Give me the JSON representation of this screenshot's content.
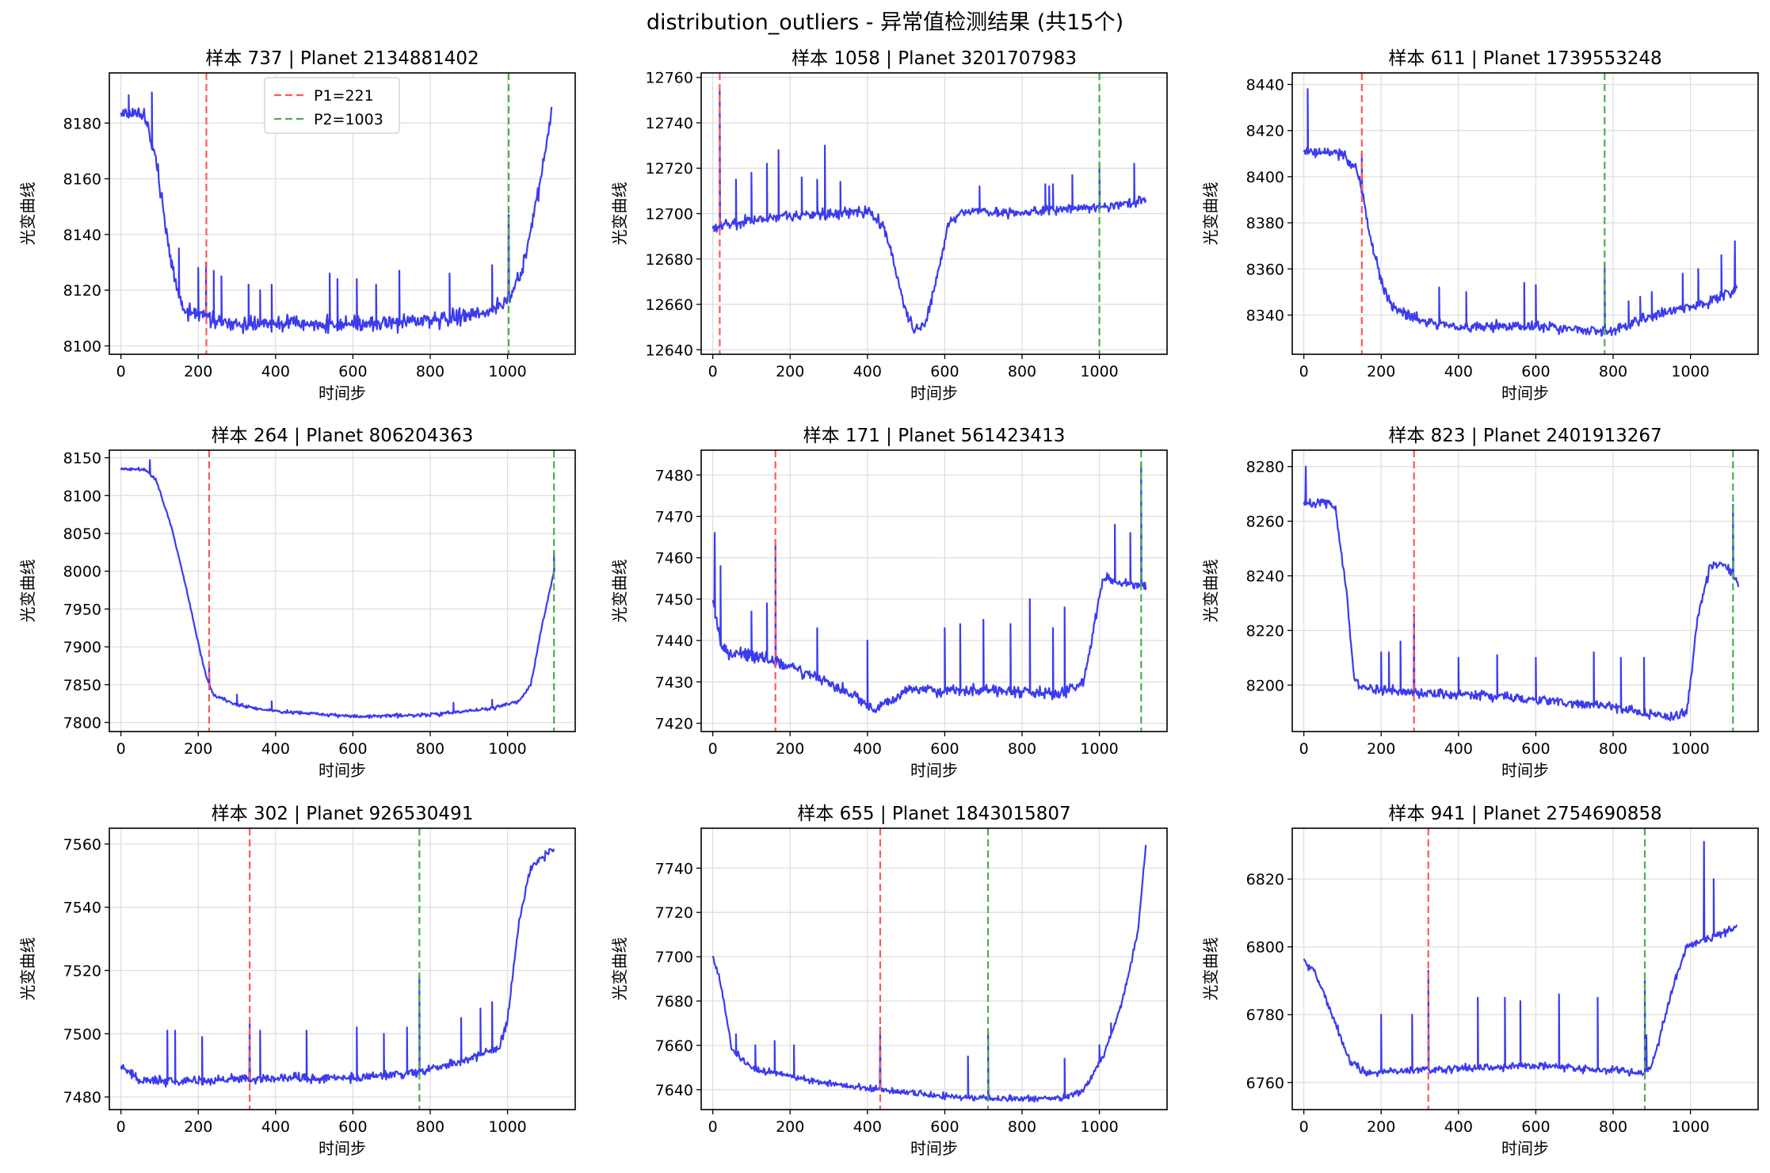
{
  "figure": {
    "title": "distribution_outliers - 异常值检测结果 (共15个)"
  },
  "colors": {
    "series": "#3b3bf0",
    "p1": "#ff5a5a",
    "p2": "#4caf50",
    "grid": "#dddddd"
  },
  "chart_data": [
    {
      "type": "line",
      "title": "样本 737 | Planet 2134881402",
      "xlabel": "时间步",
      "ylabel": "光变曲线",
      "xlim": [
        -30,
        1175
      ],
      "ylim": [
        8097,
        8198
      ],
      "xticks": [
        0,
        200,
        400,
        600,
        800,
        1000
      ],
      "yticks": [
        8100,
        8120,
        8140,
        8160,
        8180
      ],
      "p1": 221,
      "p2": 1003,
      "legend": {
        "loc": "upper center",
        "entries": [
          "P1=221",
          "P2=1003"
        ]
      },
      "curve": [
        [
          0,
          8184
        ],
        [
          60,
          8183
        ],
        [
          90,
          8168
        ],
        [
          130,
          8130
        ],
        [
          160,
          8113
        ],
        [
          220,
          8110
        ],
        [
          300,
          8107
        ],
        [
          400,
          8108
        ],
        [
          600,
          8108
        ],
        [
          800,
          8109
        ],
        [
          900,
          8111
        ],
        [
          980,
          8114
        ],
        [
          1010,
          8118
        ],
        [
          1040,
          8128
        ],
        [
          1080,
          8155
        ],
        [
          1115,
          8184
        ]
      ],
      "noise": 2.5,
      "spikes": [
        [
          20,
          8190
        ],
        [
          80,
          8191
        ],
        [
          150,
          8135
        ],
        [
          200,
          8128
        ],
        [
          220,
          8130
        ],
        [
          240,
          8127
        ],
        [
          260,
          8125
        ],
        [
          330,
          8122
        ],
        [
          360,
          8120
        ],
        [
          390,
          8122
        ],
        [
          540,
          8126
        ],
        [
          560,
          8124
        ],
        [
          610,
          8124
        ],
        [
          660,
          8122
        ],
        [
          720,
          8127
        ],
        [
          850,
          8126
        ],
        [
          960,
          8129
        ],
        [
          1003,
          8147
        ]
      ]
    },
    {
      "type": "line",
      "title": "样本 1058 | Planet 3201707983",
      "xlabel": "时间步",
      "ylabel": "光变曲线",
      "xlim": [
        -30,
        1175
      ],
      "ylim": [
        12638,
        12762
      ],
      "xticks": [
        0,
        200,
        400,
        600,
        800,
        1000
      ],
      "yticks": [
        12640,
        12660,
        12680,
        12700,
        12720,
        12740,
        12760
      ],
      "p1": 18,
      "p2": 1000,
      "curve": [
        [
          0,
          12694
        ],
        [
          100,
          12697
        ],
        [
          200,
          12699
        ],
        [
          300,
          12700
        ],
        [
          400,
          12701
        ],
        [
          440,
          12695
        ],
        [
          470,
          12678
        ],
        [
          500,
          12657
        ],
        [
          520,
          12648
        ],
        [
          550,
          12652
        ],
        [
          580,
          12672
        ],
        [
          610,
          12695
        ],
        [
          640,
          12701
        ],
        [
          800,
          12700
        ],
        [
          900,
          12702
        ],
        [
          1000,
          12703
        ],
        [
          1120,
          12706
        ]
      ],
      "noise": 2,
      "spikes": [
        [
          18,
          12755
        ],
        [
          60,
          12715
        ],
        [
          100,
          12718
        ],
        [
          140,
          12722
        ],
        [
          170,
          12728
        ],
        [
          230,
          12716
        ],
        [
          270,
          12715
        ],
        [
          290,
          12730
        ],
        [
          330,
          12714
        ],
        [
          690,
          12712
        ],
        [
          860,
          12713
        ],
        [
          870,
          12712
        ],
        [
          880,
          12713
        ],
        [
          930,
          12717
        ],
        [
          1000,
          12722
        ],
        [
          1090,
          12722
        ]
      ]
    },
    {
      "type": "line",
      "title": "样本 611 | Planet 1739553248",
      "xlabel": "时间步",
      "ylabel": "光变曲线",
      "xlim": [
        -30,
        1175
      ],
      "ylim": [
        8323,
        8445
      ],
      "xticks": [
        0,
        200,
        400,
        600,
        800,
        1000
      ],
      "yticks": [
        8340,
        8360,
        8380,
        8400,
        8420,
        8440
      ],
      "p1": 150,
      "p2": 778,
      "curve": [
        [
          0,
          8411
        ],
        [
          100,
          8410
        ],
        [
          130,
          8405
        ],
        [
          150,
          8395
        ],
        [
          170,
          8375
        ],
        [
          200,
          8355
        ],
        [
          230,
          8343
        ],
        [
          300,
          8338
        ],
        [
          400,
          8335
        ],
        [
          600,
          8335
        ],
        [
          780,
          8333
        ],
        [
          800,
          8333
        ],
        [
          860,
          8337
        ],
        [
          950,
          8342
        ],
        [
          1050,
          8346
        ],
        [
          1120,
          8351
        ]
      ],
      "noise": 2,
      "spikes": [
        [
          10,
          8438
        ],
        [
          150,
          8410
        ],
        [
          350,
          8352
        ],
        [
          420,
          8350
        ],
        [
          570,
          8354
        ],
        [
          600,
          8353
        ],
        [
          778,
          8362
        ],
        [
          840,
          8346
        ],
        [
          870,
          8348
        ],
        [
          900,
          8350
        ],
        [
          980,
          8358
        ],
        [
          1020,
          8360
        ],
        [
          1080,
          8366
        ],
        [
          1115,
          8372
        ]
      ]
    },
    {
      "type": "line",
      "title": "样本 264 | Planet 806204363",
      "xlabel": "时间步",
      "ylabel": "光变曲线",
      "xlim": [
        -30,
        1175
      ],
      "ylim": [
        7788,
        8160
      ],
      "xticks": [
        0,
        200,
        400,
        600,
        800,
        1000
      ],
      "yticks": [
        7800,
        7850,
        7900,
        7950,
        8000,
        8050,
        8100,
        8150
      ],
      "p1": 228,
      "p2": 1120,
      "curve": [
        [
          0,
          8135
        ],
        [
          60,
          8135
        ],
        [
          90,
          8122
        ],
        [
          130,
          8060
        ],
        [
          170,
          7975
        ],
        [
          200,
          7905
        ],
        [
          220,
          7862
        ],
        [
          240,
          7836
        ],
        [
          300,
          7823
        ],
        [
          400,
          7815
        ],
        [
          600,
          7808
        ],
        [
          800,
          7810
        ],
        [
          950,
          7818
        ],
        [
          1030,
          7828
        ],
        [
          1060,
          7850
        ],
        [
          1090,
          7930
        ],
        [
          1120,
          8000
        ]
      ],
      "noise": 2,
      "spikes": [
        [
          75,
          8147
        ],
        [
          228,
          7880
        ],
        [
          300,
          7837
        ],
        [
          390,
          7828
        ],
        [
          860,
          7826
        ],
        [
          960,
          7830
        ],
        [
          1120,
          8027
        ]
      ]
    },
    {
      "type": "line",
      "title": "样本 171 | Planet 561423413",
      "xlabel": "时间步",
      "ylabel": "光变曲线",
      "xlim": [
        -30,
        1175
      ],
      "ylim": [
        7418,
        7486
      ],
      "xticks": [
        0,
        200,
        400,
        600,
        800,
        1000
      ],
      "yticks": [
        7420,
        7430,
        7440,
        7450,
        7460,
        7470,
        7480
      ],
      "p1": 162,
      "p2": 1108,
      "curve": [
        [
          0,
          7450
        ],
        [
          20,
          7440
        ],
        [
          40,
          7437
        ],
        [
          160,
          7435
        ],
        [
          300,
          7430
        ],
        [
          380,
          7426
        ],
        [
          420,
          7423
        ],
        [
          500,
          7428
        ],
        [
          700,
          7428
        ],
        [
          900,
          7427
        ],
        [
          960,
          7430
        ],
        [
          990,
          7445
        ],
        [
          1010,
          7455
        ],
        [
          1120,
          7453
        ]
      ],
      "noise": 1.2,
      "spikes": [
        [
          5,
          7466
        ],
        [
          20,
          7458
        ],
        [
          100,
          7447
        ],
        [
          140,
          7449
        ],
        [
          162,
          7463
        ],
        [
          270,
          7443
        ],
        [
          400,
          7440
        ],
        [
          600,
          7443
        ],
        [
          640,
          7444
        ],
        [
          700,
          7445
        ],
        [
          770,
          7444
        ],
        [
          820,
          7450
        ],
        [
          880,
          7443
        ],
        [
          910,
          7448
        ],
        [
          1040,
          7468
        ],
        [
          1080,
          7466
        ],
        [
          1108,
          7483
        ]
      ]
    },
    {
      "type": "line",
      "title": "样本 823 | Planet 2401913267",
      "xlabel": "时间步",
      "ylabel": "光变曲线",
      "xlim": [
        -30,
        1175
      ],
      "ylim": [
        8183,
        8286
      ],
      "xticks": [
        0,
        200,
        400,
        600,
        800,
        1000
      ],
      "yticks": [
        8200,
        8220,
        8240,
        8260,
        8280
      ],
      "p1": 285,
      "p2": 1110,
      "curve": [
        [
          0,
          8267
        ],
        [
          80,
          8266
        ],
        [
          110,
          8235
        ],
        [
          130,
          8202
        ],
        [
          160,
          8199
        ],
        [
          300,
          8197
        ],
        [
          500,
          8196
        ],
        [
          800,
          8192
        ],
        [
          950,
          8188
        ],
        [
          990,
          8190
        ],
        [
          1020,
          8225
        ],
        [
          1050,
          8243
        ],
        [
          1080,
          8245
        ],
        [
          1110,
          8240
        ],
        [
          1125,
          8237
        ]
      ],
      "noise": 1.5,
      "spikes": [
        [
          5,
          8280
        ],
        [
          200,
          8212
        ],
        [
          220,
          8212
        ],
        [
          250,
          8216
        ],
        [
          285,
          8226
        ],
        [
          400,
          8210
        ],
        [
          500,
          8211
        ],
        [
          600,
          8210
        ],
        [
          750,
          8212
        ],
        [
          820,
          8210
        ],
        [
          880,
          8210
        ],
        [
          1110,
          8266
        ]
      ]
    },
    {
      "type": "line",
      "title": "样本 302 | Planet 926530491",
      "xlabel": "时间步",
      "ylabel": "光变曲线",
      "xlim": [
        -30,
        1175
      ],
      "ylim": [
        7476,
        7565
      ],
      "xticks": [
        0,
        200,
        400,
        600,
        800,
        1000
      ],
      "yticks": [
        7480,
        7500,
        7520,
        7540,
        7560
      ],
      "p1": 333,
      "p2": 772,
      "curve": [
        [
          0,
          7490
        ],
        [
          50,
          7485
        ],
        [
          200,
          7485
        ],
        [
          400,
          7486
        ],
        [
          600,
          7486
        ],
        [
          772,
          7488
        ],
        [
          900,
          7492
        ],
        [
          980,
          7496
        ],
        [
          1000,
          7505
        ],
        [
          1030,
          7535
        ],
        [
          1060,
          7553
        ],
        [
          1120,
          7558
        ]
      ],
      "noise": 1.2,
      "spikes": [
        [
          120,
          7501
        ],
        [
          140,
          7501
        ],
        [
          210,
          7499
        ],
        [
          333,
          7503
        ],
        [
          360,
          7501
        ],
        [
          480,
          7501
        ],
        [
          610,
          7502
        ],
        [
          680,
          7500
        ],
        [
          740,
          7502
        ],
        [
          772,
          7518
        ],
        [
          880,
          7505
        ],
        [
          930,
          7508
        ],
        [
          960,
          7510
        ]
      ]
    },
    {
      "type": "line",
      "title": "样本 655 | Planet 1843015807",
      "xlabel": "时间步",
      "ylabel": "光变曲线",
      "xlim": [
        -30,
        1175
      ],
      "ylim": [
        7631,
        7758
      ],
      "xticks": [
        0,
        200,
        400,
        600,
        800,
        1000
      ],
      "yticks": [
        7640,
        7660,
        7680,
        7700,
        7720,
        7740
      ],
      "p1": 433,
      "p2": 712,
      "curve": [
        [
          0,
          7700
        ],
        [
          20,
          7688
        ],
        [
          50,
          7658
        ],
        [
          100,
          7650
        ],
        [
          250,
          7644
        ],
        [
          433,
          7640
        ],
        [
          600,
          7637
        ],
        [
          712,
          7636
        ],
        [
          900,
          7636
        ],
        [
          960,
          7640
        ],
        [
          1010,
          7655
        ],
        [
          1060,
          7680
        ],
        [
          1100,
          7712
        ],
        [
          1120,
          7750
        ]
      ],
      "noise": 1.2,
      "spikes": [
        [
          60,
          7665
        ],
        [
          110,
          7660
        ],
        [
          160,
          7662
        ],
        [
          210,
          7660
        ],
        [
          433,
          7668
        ],
        [
          660,
          7655
        ],
        [
          712,
          7666
        ],
        [
          910,
          7654
        ],
        [
          1000,
          7660
        ],
        [
          1030,
          7670
        ]
      ]
    },
    {
      "type": "line",
      "title": "样本 941 | Planet 2754690858",
      "xlabel": "时间步",
      "ylabel": "光变曲线",
      "xlim": [
        -30,
        1175
      ],
      "ylim": [
        6752,
        6835
      ],
      "xticks": [
        0,
        200,
        400,
        600,
        800,
        1000
      ],
      "yticks": [
        6760,
        6780,
        6800,
        6820
      ],
      "p1": 322,
      "p2": 882,
      "curve": [
        [
          0,
          6796
        ],
        [
          30,
          6792
        ],
        [
          80,
          6778
        ],
        [
          120,
          6766
        ],
        [
          160,
          6763
        ],
        [
          400,
          6764
        ],
        [
          600,
          6765
        ],
        [
          880,
          6763
        ],
        [
          900,
          6765
        ],
        [
          960,
          6790
        ],
        [
          990,
          6800
        ],
        [
          1120,
          6806
        ]
      ],
      "noise": 1,
      "spikes": [
        [
          200,
          6780
        ],
        [
          280,
          6780
        ],
        [
          322,
          6793
        ],
        [
          450,
          6785
        ],
        [
          520,
          6785
        ],
        [
          560,
          6784
        ],
        [
          660,
          6786
        ],
        [
          760,
          6785
        ],
        [
          882,
          6790
        ],
        [
          886,
          6774
        ],
        [
          930,
          6778
        ],
        [
          1035,
          6831
        ],
        [
          1060,
          6820
        ]
      ]
    }
  ]
}
